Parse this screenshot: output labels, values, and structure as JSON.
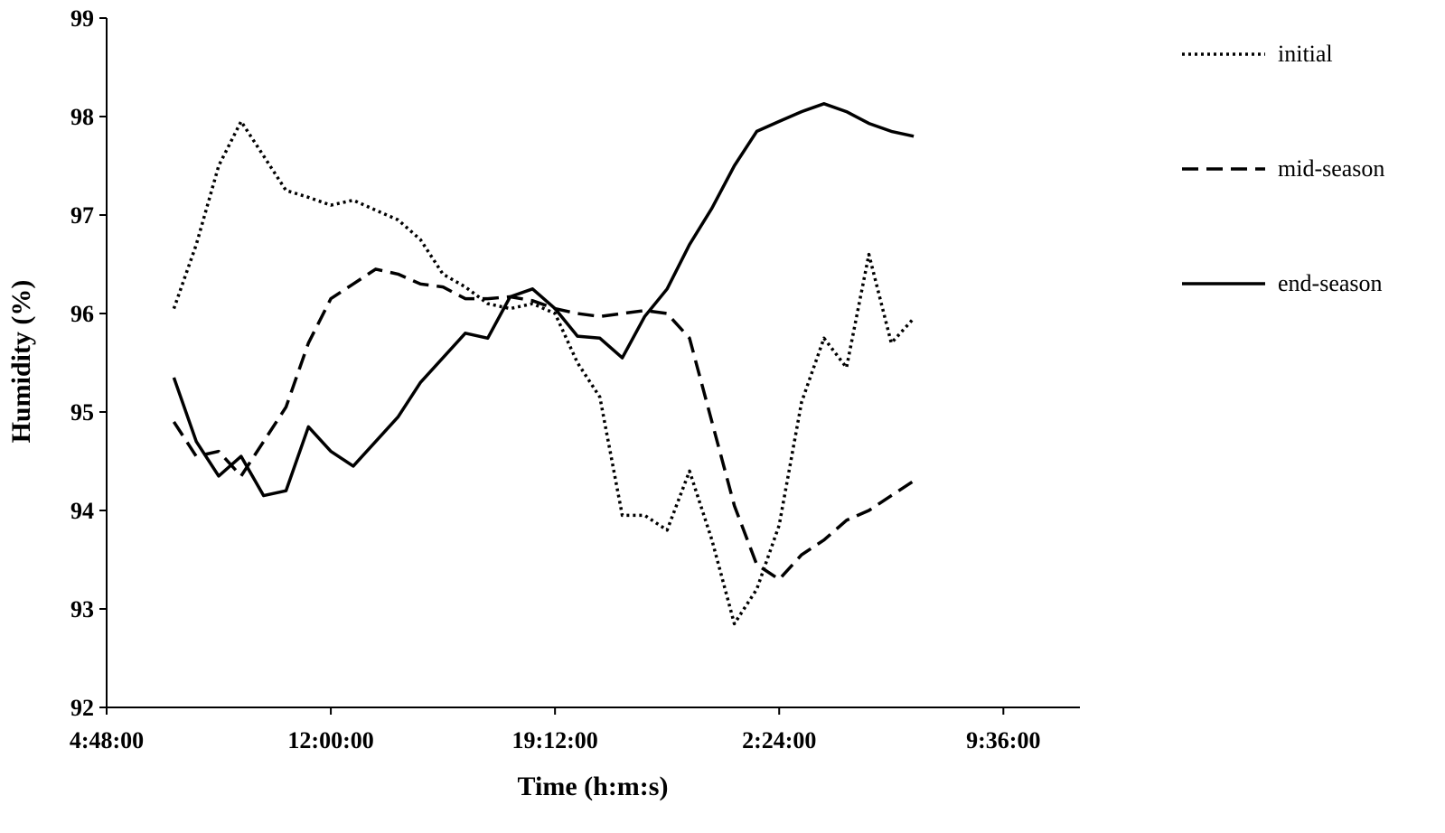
{
  "chart_data": {
    "type": "line",
    "x_label": "Time (h:m:s)",
    "y_label": "Humidity (%)",
    "xlim": [
      0.2,
      1.5
    ],
    "ylim": [
      92,
      99
    ],
    "xticks": [
      {
        "value": 0.2,
        "label": "4:48:00"
      },
      {
        "value": 0.5,
        "label": "12:00:00"
      },
      {
        "value": 0.8,
        "label": "19:12:00"
      },
      {
        "value": 1.1,
        "label": "2:24:00"
      },
      {
        "value": 1.4,
        "label": "9:36:00"
      }
    ],
    "yticks": [
      92,
      93,
      94,
      95,
      96,
      97,
      98,
      99
    ],
    "legend": "right",
    "x": [
      0.29,
      0.32,
      0.35,
      0.38,
      0.41,
      0.44,
      0.47,
      0.5,
      0.53,
      0.56,
      0.59,
      0.62,
      0.65,
      0.68,
      0.71,
      0.74,
      0.77,
      0.8,
      0.83,
      0.86,
      0.89,
      0.92,
      0.95,
      0.98,
      1.01,
      1.04,
      1.07,
      1.1,
      1.13,
      1.16,
      1.19,
      1.22,
      1.25,
      1.28
    ],
    "series": [
      {
        "name": "initial",
        "color": "#000000",
        "dash": "dotted",
        "values": [
          96.05,
          96.7,
          97.5,
          97.95,
          97.6,
          97.25,
          97.18,
          97.1,
          97.15,
          97.05,
          96.95,
          96.75,
          96.4,
          96.27,
          96.1,
          96.05,
          96.1,
          96.0,
          95.5,
          95.15,
          93.95,
          93.95,
          93.8,
          94.4,
          93.7,
          92.85,
          93.2,
          93.85,
          95.1,
          95.75,
          95.45,
          96.6,
          95.7,
          95.95
        ]
      },
      {
        "name": "mid-season",
        "color": "#000000",
        "dash": "dashed",
        "values": [
          94.9,
          94.55,
          94.6,
          94.35,
          94.7,
          95.05,
          95.7,
          96.15,
          96.3,
          96.45,
          96.4,
          96.3,
          96.27,
          96.15,
          96.15,
          96.17,
          96.13,
          96.05,
          96.0,
          95.97,
          96.0,
          96.03,
          96.0,
          95.75,
          94.9,
          94.05,
          93.45,
          93.3,
          93.55,
          93.7,
          93.9,
          94.0,
          94.15,
          94.3
        ]
      },
      {
        "name": "end-season",
        "color": "#000000",
        "dash": "solid",
        "values": [
          95.35,
          94.7,
          94.35,
          94.55,
          94.15,
          94.2,
          94.85,
          94.6,
          94.45,
          94.7,
          94.95,
          95.3,
          95.55,
          95.8,
          95.75,
          96.17,
          96.25,
          96.05,
          95.77,
          95.75,
          95.55,
          95.97,
          96.25,
          96.7,
          97.07,
          97.5,
          97.85,
          97.95,
          98.05,
          98.13,
          98.05,
          97.93,
          97.85,
          97.8
        ]
      }
    ]
  }
}
